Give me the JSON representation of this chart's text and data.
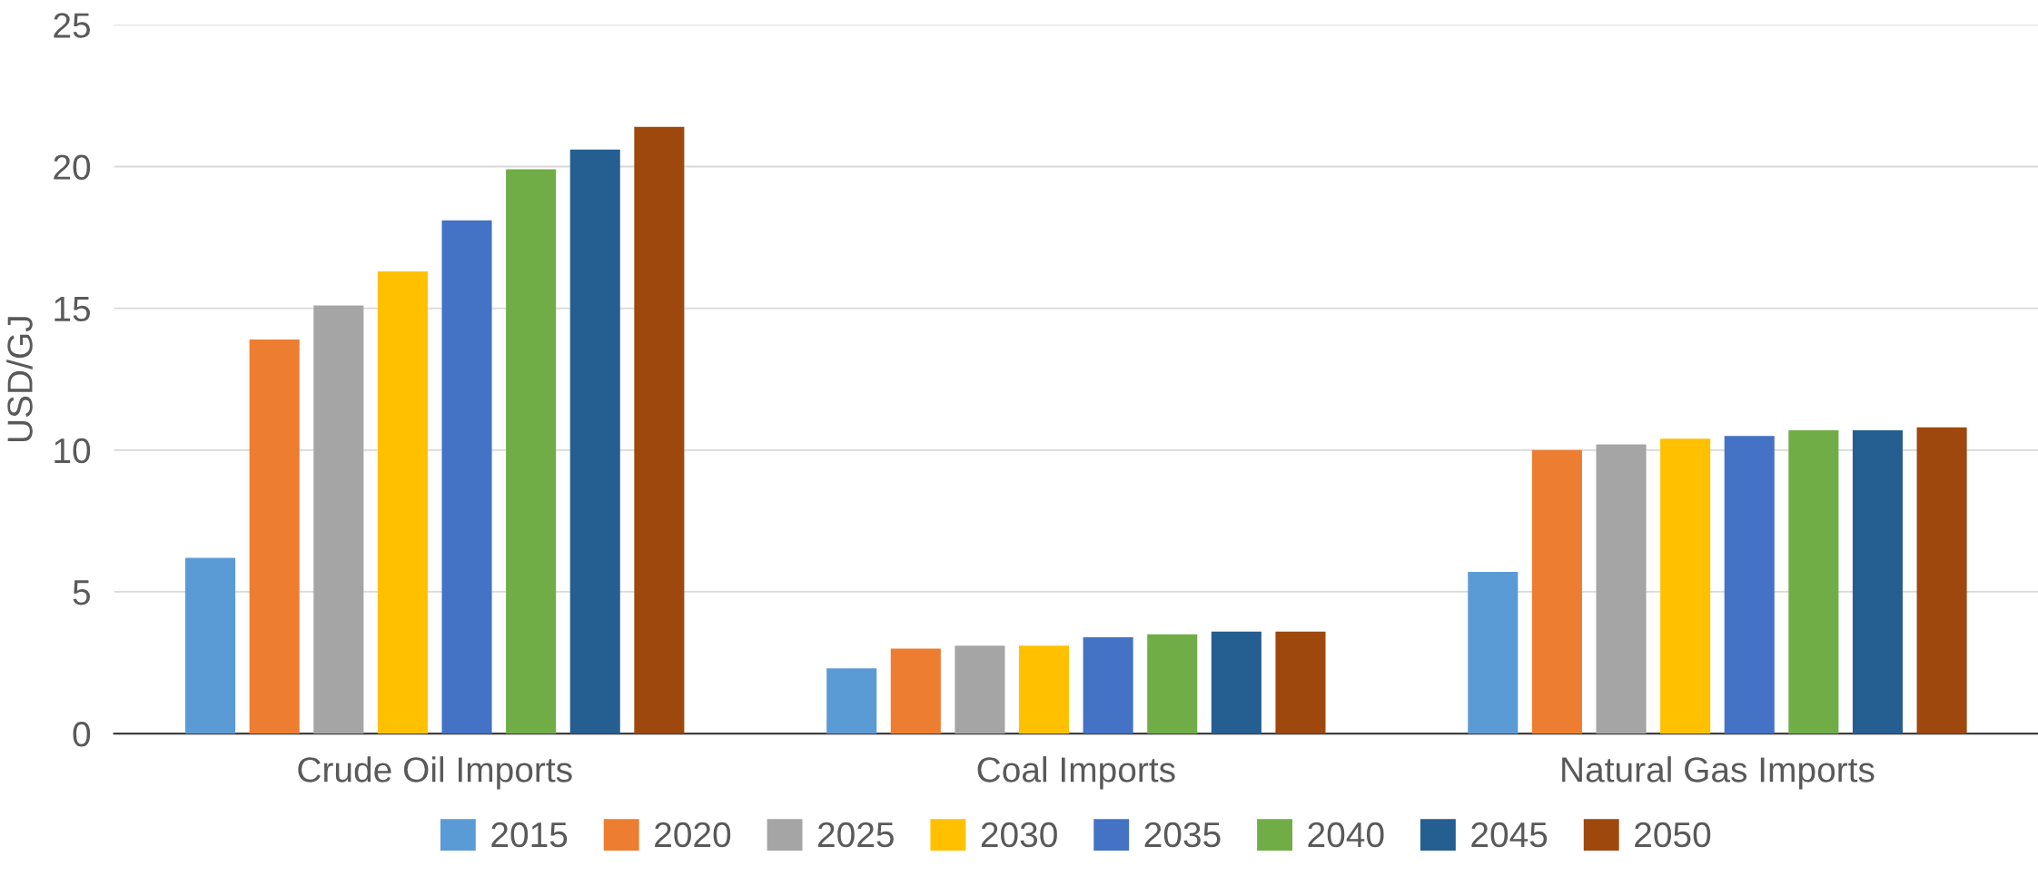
{
  "chart_data": {
    "type": "bar",
    "ylabel": "USD/GJ",
    "categories": [
      "Crude Oil Imports",
      "Coal Imports",
      "Natural Gas Imports"
    ],
    "series": [
      {
        "name": "2015",
        "color": "#5b9bd5",
        "values": [
          6.2,
          2.3,
          5.7
        ]
      },
      {
        "name": "2020",
        "color": "#ed7d31",
        "values": [
          13.9,
          3.0,
          10.0
        ]
      },
      {
        "name": "2025",
        "color": "#a5a5a5",
        "values": [
          15.1,
          3.1,
          10.2
        ]
      },
      {
        "name": "2030",
        "color": "#ffc000",
        "values": [
          16.3,
          3.1,
          10.4
        ]
      },
      {
        "name": "2035",
        "color": "#4472c4",
        "values": [
          18.1,
          3.4,
          10.5
        ]
      },
      {
        "name": "2040",
        "color": "#70ad47",
        "values": [
          19.9,
          3.5,
          10.7
        ]
      },
      {
        "name": "2045",
        "color": "#255e91",
        "values": [
          20.6,
          3.6,
          10.7
        ]
      },
      {
        "name": "2050",
        "color": "#9e480e",
        "values": [
          21.4,
          3.6,
          10.8
        ]
      }
    ],
    "ylim": [
      0,
      25
    ],
    "yticks": [
      0,
      5,
      10,
      15,
      20,
      25
    ],
    "grid": "y",
    "legend": "bottom"
  }
}
